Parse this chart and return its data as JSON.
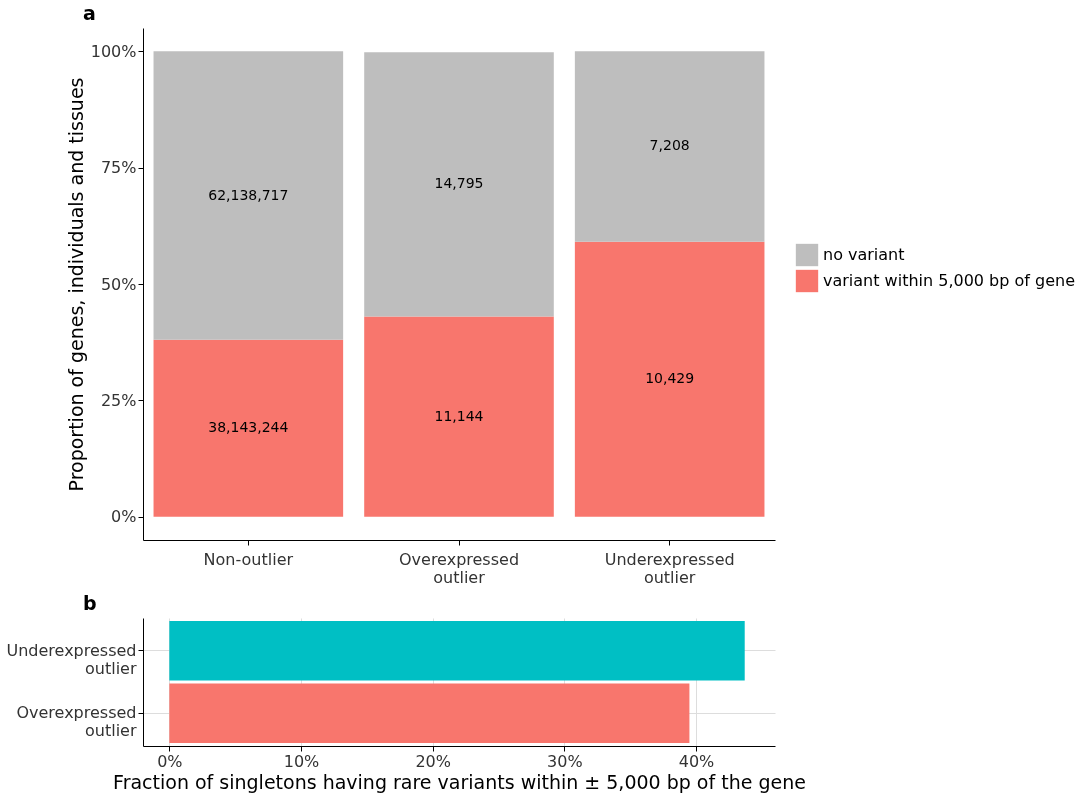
{
  "chart_data": [
    {
      "type": "bar",
      "title": "a",
      "stacked": true,
      "ylabel": "Proportion of genes, individuals and tissues",
      "categories": [
        "Non-outlier",
        "Overexpressed outlier",
        "Underexpressed outlier"
      ],
      "series": [
        {
          "name": "variant within 5,000 bp of gene",
          "color": "#f8766d",
          "values": [
            38.0,
            43.0,
            59.1
          ]
        },
        {
          "name": "no variant",
          "color": "#bebebe",
          "values": [
            62.0,
            56.8,
            40.9
          ]
        }
      ],
      "annotations": [
        "38,143,244",
        "11,144",
        "10,429",
        "62,138,717",
        "14,795",
        "7,208"
      ],
      "ylim": [
        -5,
        105
      ],
      "yticks": [
        {
          "value": 0,
          "label": "0%"
        },
        {
          "value": 25,
          "label": "25%"
        },
        {
          "value": 50,
          "label": "50%"
        },
        {
          "value": 75,
          "label": "75%"
        },
        {
          "value": 100,
          "label": "100%"
        }
      ],
      "grid": false,
      "legend": "right"
    },
    {
      "type": "bar",
      "title": "b",
      "orientation": "horizontal",
      "xlabel": "Fraction of singletons having rare variants within ± 5,000 bp of the gene",
      "categories": [
        "Underexpressed outlier",
        "Overexpressed outlier"
      ],
      "values": [
        43.7,
        39.5
      ],
      "colors": [
        "#00bfc4",
        "#f8766d"
      ],
      "xlim": [
        -2,
        46
      ],
      "xticks": [
        {
          "value": 0,
          "label": "0%"
        },
        {
          "value": 10,
          "label": "10%"
        },
        {
          "value": 20,
          "label": "20%"
        },
        {
          "value": 30,
          "label": "30%"
        },
        {
          "value": 40,
          "label": "40%"
        }
      ],
      "grid": true,
      "legend": false
    }
  ]
}
